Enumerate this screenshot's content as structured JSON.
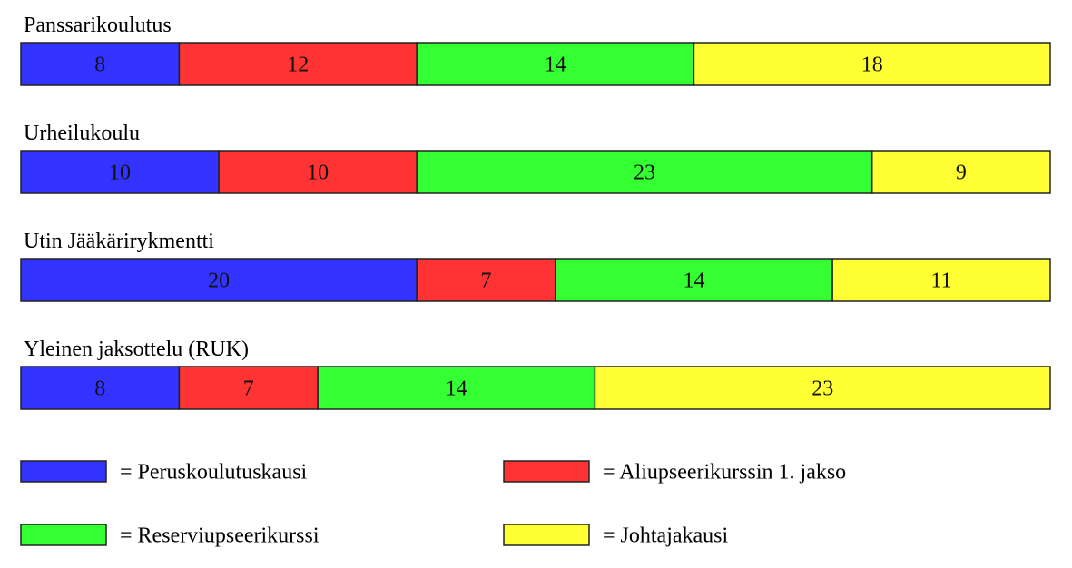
{
  "chart_data": {
    "type": "bar",
    "orientation": "horizontal-stacked",
    "rows": [
      {
        "label": "Panssarikoulutus",
        "values": [
          8,
          12,
          14,
          18
        ]
      },
      {
        "label": "Urheilukoulu",
        "values": [
          10,
          10,
          23,
          9
        ]
      },
      {
        "label": "Utin Jääkärirykmentti",
        "values": [
          20,
          7,
          14,
          11
        ]
      },
      {
        "label": "Yleinen jaksottelu (RUK)",
        "values": [
          8,
          7,
          14,
          23
        ]
      }
    ],
    "series": [
      {
        "name": "= Peruskoulutuskausi",
        "color": "#3333ff"
      },
      {
        "name": "= Aliupseerikurssin 1. jakso",
        "color": "#ff3333"
      },
      {
        "name": "= Reserviupseerikurssi",
        "color": "#33ff33"
      },
      {
        "name": "= Johtajakausi",
        "color": "#ffff33"
      }
    ],
    "title": "",
    "xlabel": "",
    "ylabel": "",
    "grid": false,
    "legend_position": "bottom"
  }
}
